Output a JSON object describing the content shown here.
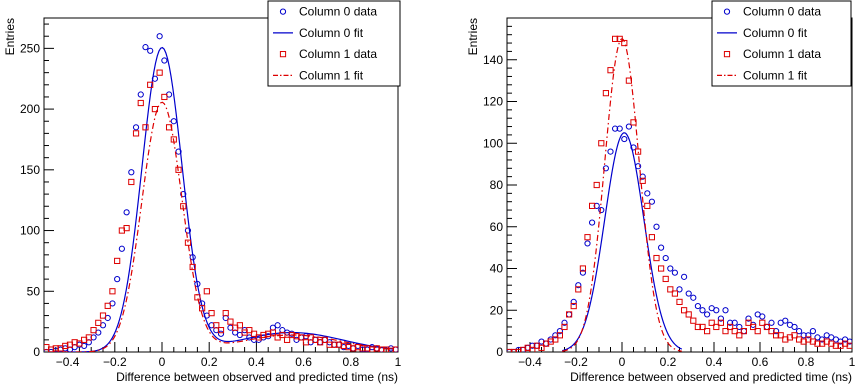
{
  "chart_data": [
    {
      "type": "scatter",
      "xlabel": "Difference between observed and predicted time (ns)",
      "ylabel": "Entries",
      "xlim": [
        -0.5,
        1.0
      ],
      "ylim": [
        0,
        275
      ],
      "x_ticks": [
        -0.4,
        -0.2,
        0,
        0.2,
        0.4,
        0.6,
        0.8,
        1
      ],
      "x_tick_labels": [
        "−0.4",
        "−0.2",
        "0",
        "0.2",
        "0.4",
        "0.6",
        "0.8",
        "1"
      ],
      "y_ticks": [
        0,
        50,
        100,
        150,
        200,
        250
      ],
      "y_tick_labels": [
        "0",
        "50",
        "100",
        "150",
        "200",
        "250"
      ],
      "legend": [
        "Column 0 data",
        "Column 0 fit",
        "Column 1 data",
        "Column 1 fit"
      ],
      "legend_position": "top-right",
      "grid": false,
      "series": [
        {
          "name": "Column 0 data",
          "marker": "circle",
          "color": "#0000cc",
          "x": [
            -0.49,
            -0.47,
            -0.45,
            -0.43,
            -0.41,
            -0.39,
            -0.37,
            -0.35,
            -0.33,
            -0.31,
            -0.29,
            -0.27,
            -0.25,
            -0.23,
            -0.21,
            -0.19,
            -0.17,
            -0.15,
            -0.13,
            -0.11,
            -0.09,
            -0.07,
            -0.05,
            -0.03,
            -0.01,
            0.01,
            0.03,
            0.05,
            0.07,
            0.09,
            0.11,
            0.13,
            0.15,
            0.17,
            0.19,
            0.21,
            0.23,
            0.25,
            0.27,
            0.29,
            0.31,
            0.33,
            0.35,
            0.37,
            0.39,
            0.41,
            0.43,
            0.45,
            0.47,
            0.49,
            0.51,
            0.53,
            0.55,
            0.57,
            0.59,
            0.61,
            0.63,
            0.65,
            0.67,
            0.69,
            0.71,
            0.73,
            0.75,
            0.77,
            0.79,
            0.81,
            0.83,
            0.85,
            0.87,
            0.89,
            0.91,
            0.93,
            0.95,
            0.97,
            0.99
          ],
          "y": [
            0,
            0,
            1,
            2,
            3,
            2,
            4,
            6,
            5,
            8,
            12,
            16,
            22,
            28,
            40,
            60,
            85,
            115,
            148,
            185,
            212,
            251,
            248,
            225,
            260,
            240,
            212,
            190,
            165,
            130,
            100,
            78,
            56,
            40,
            30,
            22,
            18,
            15,
            28,
            20,
            16,
            14,
            18,
            12,
            10,
            10,
            12,
            13,
            20,
            22,
            18,
            16,
            15,
            10,
            12,
            13,
            8,
            10,
            8,
            10,
            8,
            6,
            6,
            4,
            5,
            3,
            5,
            2,
            2,
            4,
            3,
            2,
            1,
            3,
            2
          ]
        },
        {
          "name": "Column 0 fit",
          "line": "solid",
          "color": "#0000cc",
          "model": {
            "amplitude": 250,
            "mean": 0.0,
            "sigma": 0.085,
            "tail_amplitude": 16,
            "tail_mean": 0.55,
            "tail_sigma": 0.22
          },
          "x_range": [
            -0.48,
            0.98
          ]
        },
        {
          "name": "Column 1 data",
          "marker": "square",
          "color": "#dd0000",
          "x": [
            -0.49,
            -0.47,
            -0.45,
            -0.43,
            -0.41,
            -0.39,
            -0.37,
            -0.35,
            -0.33,
            -0.31,
            -0.29,
            -0.27,
            -0.25,
            -0.23,
            -0.21,
            -0.19,
            -0.17,
            -0.15,
            -0.13,
            -0.11,
            -0.09,
            -0.07,
            -0.05,
            -0.03,
            -0.01,
            0.01,
            0.03,
            0.05,
            0.07,
            0.09,
            0.11,
            0.13,
            0.15,
            0.17,
            0.19,
            0.21,
            0.23,
            0.25,
            0.27,
            0.29,
            0.31,
            0.33,
            0.35,
            0.37,
            0.39,
            0.41,
            0.43,
            0.45,
            0.47,
            0.49,
            0.51,
            0.53,
            0.55,
            0.57,
            0.59,
            0.61,
            0.63,
            0.65,
            0.67,
            0.69,
            0.71,
            0.73,
            0.75,
            0.77,
            0.79,
            0.81,
            0.83,
            0.85,
            0.87,
            0.89,
            0.91,
            0.93,
            0.95,
            0.97,
            0.99
          ],
          "y": [
            4,
            2,
            3,
            3,
            5,
            6,
            8,
            7,
            10,
            12,
            18,
            24,
            30,
            38,
            50,
            75,
            100,
            102,
            140,
            180,
            205,
            185,
            220,
            200,
            230,
            210,
            185,
            175,
            150,
            120,
            90,
            70,
            45,
            36,
            50,
            32,
            22,
            18,
            32,
            25,
            20,
            22,
            16,
            18,
            15,
            12,
            14,
            15,
            16,
            12,
            14,
            10,
            14,
            13,
            12,
            8,
            12,
            10,
            8,
            10,
            6,
            6,
            6,
            5,
            4,
            3,
            4,
            3,
            3,
            2,
            3,
            2,
            2,
            1,
            2
          ]
        },
        {
          "name": "Column 1 fit",
          "line": "dashdot",
          "color": "#dd0000",
          "model": {
            "amplitude": 205,
            "mean": 0.0,
            "sigma": 0.085,
            "tail_amplitude": 14,
            "tail_mean": 0.55,
            "tail_sigma": 0.22
          },
          "x_range": [
            -0.48,
            0.98
          ]
        }
      ]
    },
    {
      "type": "scatter",
      "xlabel": "Difference between observed and predicted time (ns)",
      "ylabel": "Entries",
      "xlim": [
        -0.5,
        1.0
      ],
      "ylim": [
        0,
        160
      ],
      "x_ticks": [
        -0.4,
        -0.2,
        0,
        0.2,
        0.4,
        0.6,
        0.8,
        1
      ],
      "x_tick_labels": [
        "−0.4",
        "−0.2",
        "0",
        "0.2",
        "0.4",
        "0.6",
        "0.8",
        "1"
      ],
      "y_ticks": [
        0,
        20,
        40,
        60,
        80,
        100,
        120,
        140
      ],
      "y_tick_labels": [
        "0",
        "20",
        "40",
        "60",
        "80",
        "100",
        "120",
        "140"
      ],
      "legend": [
        "Column 0 data",
        "Column 0 fit",
        "Column 1 data",
        "Column 1 fit"
      ],
      "legend_position": "top-right",
      "grid": false,
      "series": [
        {
          "name": "Column 0 data",
          "marker": "circle",
          "color": "#0000cc",
          "x": [
            -0.49,
            -0.47,
            -0.45,
            -0.43,
            -0.41,
            -0.39,
            -0.37,
            -0.35,
            -0.33,
            -0.31,
            -0.29,
            -0.27,
            -0.25,
            -0.23,
            -0.21,
            -0.19,
            -0.17,
            -0.15,
            -0.13,
            -0.11,
            -0.09,
            -0.07,
            -0.05,
            -0.03,
            -0.01,
            0.01,
            0.03,
            0.05,
            0.07,
            0.09,
            0.11,
            0.13,
            0.15,
            0.17,
            0.19,
            0.21,
            0.23,
            0.25,
            0.27,
            0.29,
            0.31,
            0.33,
            0.35,
            0.37,
            0.39,
            0.41,
            0.43,
            0.45,
            0.47,
            0.49,
            0.51,
            0.53,
            0.55,
            0.57,
            0.59,
            0.61,
            0.63,
            0.65,
            0.67,
            0.69,
            0.71,
            0.73,
            0.75,
            0.77,
            0.79,
            0.81,
            0.83,
            0.85,
            0.87,
            0.89,
            0.91,
            0.93,
            0.95,
            0.97,
            0.99
          ],
          "y": [
            0,
            0,
            1,
            1,
            2,
            3,
            3,
            5,
            4,
            6,
            8,
            10,
            14,
            18,
            24,
            32,
            38,
            52,
            62,
            70,
            68,
            88,
            96,
            107,
            107,
            102,
            108,
            98,
            89,
            84,
            76,
            72,
            60,
            50,
            45,
            40,
            38,
            30,
            36,
            28,
            26,
            22,
            20,
            18,
            21,
            20,
            16,
            20,
            14,
            14,
            12,
            10,
            16,
            13,
            18,
            17,
            12,
            14,
            10,
            14,
            15,
            13,
            12,
            10,
            8,
            8,
            10,
            7,
            6,
            8,
            7,
            6,
            5,
            6,
            5
          ]
        },
        {
          "name": "Column 0 fit",
          "line": "solid",
          "color": "#0000cc",
          "model": {
            "amplitude": 105,
            "mean": 0.01,
            "sigma": 0.085,
            "tail_amplitude": 0,
            "tail_mean": 0,
            "tail_sigma": 1
          },
          "x_range": [
            -0.26,
            0.26
          ]
        },
        {
          "name": "Column 1 data",
          "marker": "square",
          "color": "#dd0000",
          "x": [
            -0.49,
            -0.47,
            -0.45,
            -0.43,
            -0.41,
            -0.39,
            -0.37,
            -0.35,
            -0.33,
            -0.31,
            -0.29,
            -0.27,
            -0.25,
            -0.23,
            -0.21,
            -0.19,
            -0.17,
            -0.15,
            -0.13,
            -0.11,
            -0.09,
            -0.07,
            -0.05,
            -0.03,
            -0.01,
            0.01,
            0.03,
            0.05,
            0.07,
            0.09,
            0.11,
            0.13,
            0.15,
            0.17,
            0.19,
            0.21,
            0.23,
            0.25,
            0.27,
            0.29,
            0.31,
            0.33,
            0.35,
            0.37,
            0.39,
            0.41,
            0.43,
            0.45,
            0.47,
            0.49,
            0.51,
            0.53,
            0.55,
            0.57,
            0.59,
            0.61,
            0.63,
            0.65,
            0.67,
            0.69,
            0.71,
            0.73,
            0.75,
            0.77,
            0.79,
            0.81,
            0.83,
            0.85,
            0.87,
            0.89,
            0.91,
            0.93,
            0.95,
            0.97,
            0.99
          ],
          "y": [
            0,
            0,
            0,
            1,
            2,
            1,
            3,
            2,
            4,
            5,
            6,
            8,
            12,
            18,
            22,
            30,
            40,
            55,
            70,
            80,
            100,
            124,
            135,
            150,
            150,
            148,
            130,
            110,
            96,
            82,
            70,
            55,
            45,
            40,
            35,
            30,
            28,
            24,
            20,
            18,
            15,
            12,
            12,
            10,
            14,
            12,
            14,
            10,
            12,
            10,
            8,
            10,
            14,
            12,
            10,
            14,
            12,
            10,
            8,
            8,
            6,
            7,
            8,
            6,
            5,
            6,
            5,
            4,
            4,
            5,
            4,
            3,
            3,
            4,
            3
          ]
        },
        {
          "name": "Column 1 fit",
          "line": "dashdot",
          "color": "#dd0000",
          "model": {
            "amplitude": 150,
            "mean": 0.0,
            "sigma": 0.075,
            "tail_amplitude": 0,
            "tail_mean": 0,
            "tail_sigma": 1
          },
          "x_range": [
            -0.26,
            0.26
          ]
        }
      ]
    }
  ]
}
